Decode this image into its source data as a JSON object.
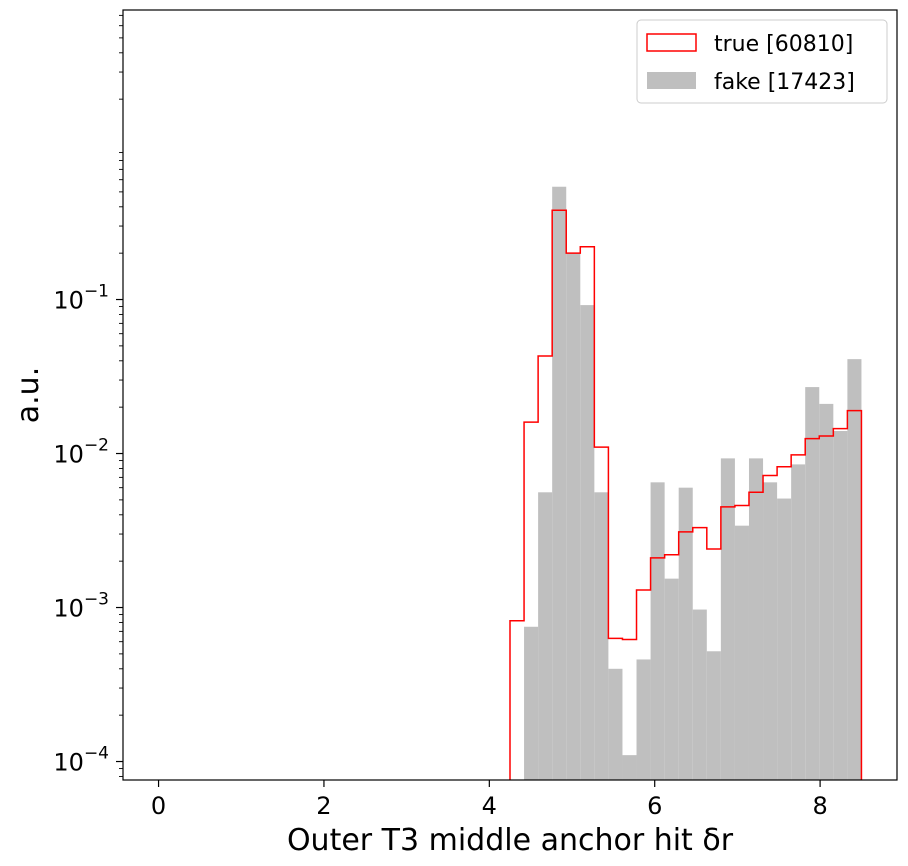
{
  "chart_data": {
    "type": "histogram",
    "title": "",
    "xlabel": "Outer T3 middle anchor hit δr",
    "ylabel": "a.u.",
    "xlim": [
      -0.43,
      8.93
    ],
    "ylim_log10": [
      -4.12,
      0.88
    ],
    "yscale": "log",
    "x_ticks": [
      0,
      2,
      4,
      6,
      8
    ],
    "x_tick_labels": [
      "0",
      "2",
      "4",
      "6",
      "8"
    ],
    "y_ticks": [
      {
        "value": 0.1,
        "base": "10",
        "exp": "−1"
      },
      {
        "value": 0.01,
        "base": "10",
        "exp": "−2"
      },
      {
        "value": 0.001,
        "base": "10",
        "exp": "−3"
      },
      {
        "value": 0.0001,
        "base": "10",
        "exp": "−4"
      }
    ],
    "bin_edges": [
      4.25,
      4.42,
      4.59,
      4.76,
      4.93,
      5.1,
      5.27,
      5.44,
      5.61,
      5.78,
      5.95,
      6.12,
      6.29,
      6.46,
      6.63,
      6.8,
      6.97,
      7.14,
      7.31,
      7.48,
      7.65,
      7.82,
      7.99,
      8.16,
      8.33,
      8.5
    ],
    "series": [
      {
        "name": "true [60810]",
        "style": "step",
        "color": "#ff0000",
        "values": [
          0.00082,
          0.016,
          0.043,
          0.38,
          0.2,
          0.22,
          0.011,
          0.00063,
          0.00062,
          0.0013,
          0.0021,
          0.0022,
          0.0031,
          0.0033,
          0.0024,
          0.0045,
          0.0046,
          0.0056,
          0.0072,
          0.0082,
          0.0098,
          0.0125,
          0.013,
          0.0145,
          0.019
        ]
      },
      {
        "name": "fake [17423]",
        "style": "filled",
        "color": "#bfbfbf",
        "values": [
          0,
          0.00075,
          0.0056,
          0.54,
          0.2,
          0.092,
          0.0056,
          0.0004,
          0.00011,
          0.00046,
          0.0065,
          0.00154,
          0.006,
          0.00097,
          0.00052,
          0.0093,
          0.0034,
          0.0093,
          0.0065,
          0.0051,
          0.0085,
          0.027,
          0.021,
          0.014,
          0.041
        ]
      }
    ],
    "legend": {
      "position": "top-right",
      "entries": [
        "true [60810]",
        "fake [17423]"
      ]
    }
  }
}
